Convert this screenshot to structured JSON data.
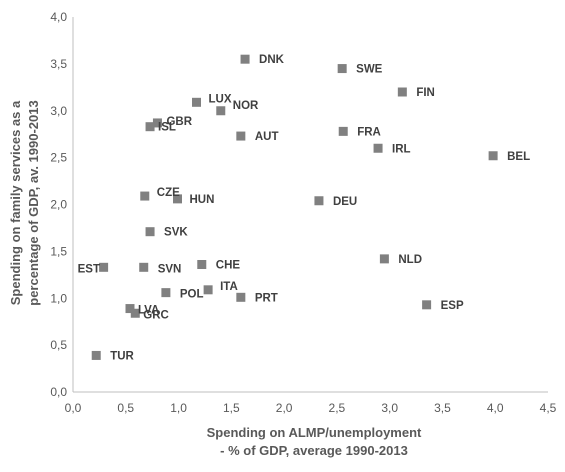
{
  "chart_data": {
    "type": "scatter",
    "title": "",
    "xlabel_lines": [
      "Spending on ALMP/unemployment",
      "- % of GDP, average 1990-2013"
    ],
    "ylabel_lines": [
      "Spending on family services as a",
      "percentage of GDP, av. 1990-2013"
    ],
    "xlim": [
      0,
      4.5
    ],
    "ylim": [
      0,
      4
    ],
    "xticks": [
      "0,0",
      "0,5",
      "1,0",
      "1,5",
      "2,0",
      "2,5",
      "3,0",
      "3,5",
      "4,0",
      "4,5"
    ],
    "yticks": [
      "0,0",
      "0,5",
      "1,0",
      "1,5",
      "2,0",
      "2,5",
      "3,0",
      "3,5",
      "4,0"
    ],
    "grid": false,
    "marker": "square",
    "marker_color": "#808080",
    "points": [
      {
        "label": "DNK",
        "x": 1.63,
        "y": 3.55
      },
      {
        "label": "SWE",
        "x": 2.55,
        "y": 3.45
      },
      {
        "label": "FIN",
        "x": 3.12,
        "y": 3.2
      },
      {
        "label": "LUX",
        "x": 1.17,
        "y": 3.09
      },
      {
        "label": "NOR",
        "x": 1.4,
        "y": 3.0
      },
      {
        "label": "GBR",
        "x": 0.8,
        "y": 2.87
      },
      {
        "label": "ISL",
        "x": 0.73,
        "y": 2.83
      },
      {
        "label": "FRA",
        "x": 2.56,
        "y": 2.78
      },
      {
        "label": "AUT",
        "x": 1.59,
        "y": 2.73
      },
      {
        "label": "IRL",
        "x": 2.89,
        "y": 2.6
      },
      {
        "label": "BEL",
        "x": 3.98,
        "y": 2.52
      },
      {
        "label": "CZE",
        "x": 0.68,
        "y": 2.09
      },
      {
        "label": "HUN",
        "x": 0.99,
        "y": 2.06
      },
      {
        "label": "DEU",
        "x": 2.33,
        "y": 2.04
      },
      {
        "label": "SVK",
        "x": 0.73,
        "y": 1.71
      },
      {
        "label": "NLD",
        "x": 2.95,
        "y": 1.42
      },
      {
        "label": "CHE",
        "x": 1.22,
        "y": 1.36
      },
      {
        "label": "EST",
        "x": 0.29,
        "y": 1.33
      },
      {
        "label": "SVN",
        "x": 0.67,
        "y": 1.33
      },
      {
        "label": "ITA",
        "x": 1.28,
        "y": 1.09
      },
      {
        "label": "POL",
        "x": 0.88,
        "y": 1.06
      },
      {
        "label": "PRT",
        "x": 1.59,
        "y": 1.01
      },
      {
        "label": "ESP",
        "x": 3.35,
        "y": 0.93
      },
      {
        "label": "LVA",
        "x": 0.54,
        "y": 0.89
      },
      {
        "label": "GRC",
        "x": 0.59,
        "y": 0.84
      },
      {
        "label": "TUR",
        "x": 0.22,
        "y": 0.39
      }
    ]
  }
}
